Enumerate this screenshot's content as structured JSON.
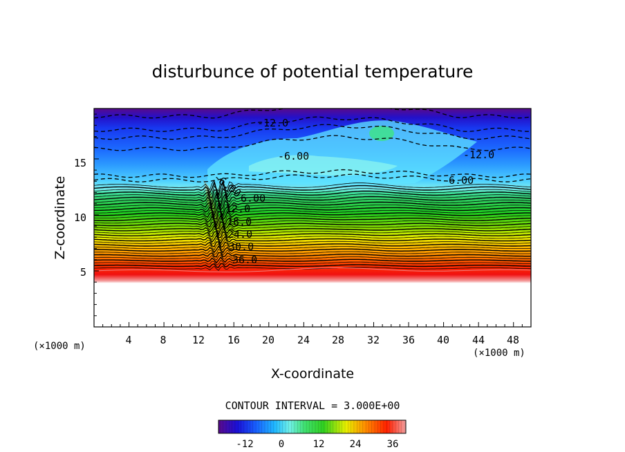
{
  "chart_data": {
    "type": "heatmap",
    "title": "disturbunce of potential temperature",
    "xlabel": "X-coordinate",
    "ylabel": "Z-coordinate",
    "x_unit_left": "(×1000 m)",
    "x_unit_right": "(×1000 m)",
    "xlim": [
      0,
      50
    ],
    "ylim": [
      0,
      19.5
    ],
    "x_ticks": [
      "4",
      "8",
      "12",
      "16",
      "20",
      "24",
      "28",
      "32",
      "36",
      "40",
      "44",
      "48"
    ],
    "y_ticks": [
      "5",
      "10",
      "15"
    ],
    "contour_interval_text": "CONTOUR INTERVAL = 3.000E+00",
    "contour_interval": 3.0,
    "colorbar": {
      "range": [
        -18,
        39
      ],
      "ticks": [
        "-12",
        "0",
        "12",
        "24",
        "36"
      ],
      "colors": [
        "#5a0a8c",
        "#1a10d8",
        "#1860ff",
        "#20b8ff",
        "#70f0e8",
        "#40e070",
        "#30d020",
        "#e8f000",
        "#ff9000",
        "#ff2000",
        "#f4a0a0"
      ]
    },
    "contour_labels": [
      "-12.0",
      "-6.00",
      "-12.0",
      "-6.00",
      "-6.00",
      "6.00",
      "12.0",
      "18.0",
      "24.0",
      "30.0",
      "36.0"
    ],
    "surface_height_z": 5.0,
    "description": "theta' increases from about -15 near z=19 to about 39 near z=5; mountain-wave disturbance near x=12-16"
  }
}
